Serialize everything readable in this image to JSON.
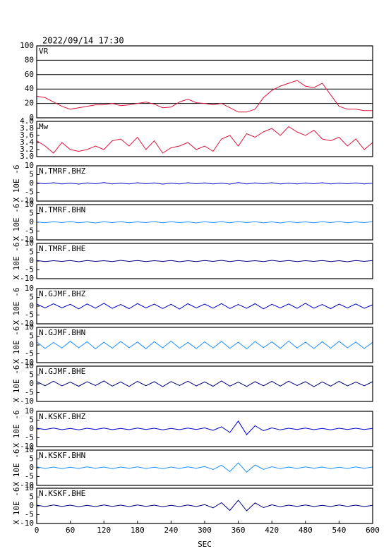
{
  "chart_data": [
    {
      "type": "line",
      "title": "2022/09/14 17:30",
      "label": "VR",
      "color": "#dc143c",
      "grid": true,
      "xlim": [
        0,
        600
      ],
      "ylim": [
        0,
        100
      ],
      "yticks": [
        0,
        20,
        40,
        60,
        80,
        100
      ],
      "x": [
        0,
        15,
        30,
        45,
        60,
        75,
        90,
        105,
        120,
        135,
        150,
        165,
        180,
        195,
        210,
        225,
        240,
        255,
        270,
        285,
        300,
        315,
        330,
        345,
        360,
        375,
        390,
        405,
        420,
        435,
        450,
        465,
        480,
        495,
        510,
        525,
        540,
        555,
        570,
        585,
        600
      ],
      "values": [
        30,
        28,
        22,
        16,
        12,
        14,
        16,
        18,
        18,
        20,
        17,
        18,
        20,
        22,
        19,
        14,
        15,
        22,
        26,
        21,
        20,
        18,
        20,
        14,
        8,
        8,
        12,
        28,
        38,
        44,
        48,
        52,
        44,
        42,
        48,
        32,
        16,
        12,
        12,
        10,
        10
      ]
    },
    {
      "type": "line",
      "label": "Mw",
      "color": "#dc143c",
      "grid": false,
      "xlim": [
        0,
        600
      ],
      "ylim": [
        3,
        4
      ],
      "yticks": [
        {
          "value": 3,
          "label": "3.0"
        },
        3.2,
        3.4,
        3.6,
        3.8,
        {
          "value": 4,
          "label": "4.0"
        }
      ],
      "x": [
        0,
        15,
        30,
        45,
        60,
        75,
        90,
        105,
        120,
        135,
        150,
        165,
        180,
        195,
        210,
        225,
        240,
        255,
        270,
        285,
        300,
        315,
        330,
        345,
        360,
        375,
        390,
        405,
        420,
        435,
        450,
        465,
        480,
        495,
        510,
        525,
        540,
        555,
        570,
        585,
        600
      ],
      "values": [
        3.45,
        3.3,
        3.1,
        3.4,
        3.2,
        3.15,
        3.2,
        3.3,
        3.2,
        3.45,
        3.5,
        3.3,
        3.55,
        3.2,
        3.45,
        3.1,
        3.25,
        3.3,
        3.4,
        3.2,
        3.3,
        3.15,
        3.5,
        3.6,
        3.3,
        3.65,
        3.55,
        3.7,
        3.8,
        3.6,
        3.85,
        3.7,
        3.6,
        3.75,
        3.5,
        3.45,
        3.55,
        3.3,
        3.5,
        3.2,
        3.4
      ]
    },
    {
      "type": "line",
      "label": "N.TMRF.BHZ",
      "ylabel": "X 10E -6",
      "color": "#0000cd",
      "xlim": [
        0,
        600
      ],
      "ylim": [
        -10,
        10
      ],
      "yticks": [
        -10,
        -5,
        0,
        5,
        10
      ],
      "x": [
        0,
        15,
        30,
        45,
        60,
        75,
        90,
        105,
        120,
        135,
        150,
        165,
        180,
        195,
        210,
        225,
        240,
        255,
        270,
        285,
        300,
        315,
        330,
        345,
        360,
        375,
        390,
        405,
        420,
        435,
        450,
        465,
        480,
        495,
        510,
        525,
        540,
        555,
        570,
        585,
        600
      ],
      "values": [
        0.3,
        -0.2,
        0.4,
        -0.3,
        0.2,
        -0.4,
        0.3,
        -0.2,
        0.5,
        -0.3,
        0.2,
        -0.3,
        0.4,
        -0.2,
        0.3,
        -0.4,
        0.2,
        -0.3,
        0.4,
        -0.2,
        0.3,
        -0.3,
        0.2,
        -0.4,
        0.5,
        -0.3,
        0.3,
        -0.2,
        0.4,
        -0.3,
        0.2,
        -0.3,
        0.3,
        -0.2,
        0.4,
        -0.3,
        0.2,
        -0.2,
        0.3,
        -0.3,
        0.2
      ]
    },
    {
      "type": "line",
      "label": "N.TMRF.BHN",
      "ylabel": "X 10E -6",
      "color": "#1e90ff",
      "xlim": [
        0,
        600
      ],
      "ylim": [
        -10,
        10
      ],
      "yticks": [
        -10,
        -5,
        0,
        5,
        10
      ],
      "x": [
        0,
        15,
        30,
        45,
        60,
        75,
        90,
        105,
        120,
        135,
        150,
        165,
        180,
        195,
        210,
        225,
        240,
        255,
        270,
        285,
        300,
        315,
        330,
        345,
        360,
        375,
        390,
        405,
        420,
        435,
        450,
        465,
        480,
        495,
        510,
        525,
        540,
        555,
        570,
        585,
        600
      ],
      "values": [
        0.2,
        -0.3,
        0.3,
        -0.2,
        0.4,
        -0.3,
        0.2,
        -0.4,
        0.3,
        -0.2,
        0.3,
        -0.3,
        0.2,
        -0.2,
        0.4,
        -0.3,
        0.3,
        -0.2,
        0.2,
        -0.4,
        0.3,
        -0.2,
        0.3,
        -0.3,
        0.4,
        -0.2,
        0.3,
        -0.3,
        0.2,
        -0.4,
        0.3,
        -0.2,
        0.2,
        -0.3,
        0.3,
        -0.2,
        0.4,
        -0.3,
        0.2,
        -0.2,
        0.3
      ]
    },
    {
      "type": "line",
      "label": "N.TMRF.BHE",
      "ylabel": "X 10E -6",
      "color": "#000080",
      "xlim": [
        0,
        600
      ],
      "ylim": [
        -10,
        10
      ],
      "yticks": [
        -10,
        -5,
        0,
        5,
        10
      ],
      "x": [
        0,
        15,
        30,
        45,
        60,
        75,
        90,
        105,
        120,
        135,
        150,
        165,
        180,
        195,
        210,
        225,
        240,
        255,
        270,
        285,
        300,
        315,
        330,
        345,
        360,
        375,
        390,
        405,
        420,
        435,
        450,
        465,
        480,
        495,
        510,
        525,
        540,
        555,
        570,
        585,
        600
      ],
      "values": [
        0.3,
        -0.3,
        0.2,
        -0.2,
        0.3,
        -0.4,
        0.3,
        -0.2,
        0.2,
        -0.3,
        0.4,
        -0.2,
        0.3,
        -0.3,
        0.2,
        -0.2,
        0.3,
        -0.4,
        0.2,
        -0.3,
        0.3,
        -0.2,
        0.4,
        -0.3,
        0.3,
        -0.2,
        0.2,
        -0.3,
        0.4,
        -0.2,
        0.3,
        -0.3,
        0.2,
        -0.2,
        0.3,
        -0.3,
        0.2,
        -0.4,
        0.3,
        -0.2,
        0.3
      ]
    },
    {
      "type": "line",
      "label": "N.GJMF.BHZ",
      "ylabel": "X 10E -6",
      "color": "#0000cd",
      "xlim": [
        0,
        600
      ],
      "ylim": [
        -10,
        10
      ],
      "yticks": [
        -10,
        -5,
        0,
        5,
        10
      ],
      "x": [
        0,
        15,
        30,
        45,
        60,
        75,
        90,
        105,
        120,
        135,
        150,
        165,
        180,
        195,
        210,
        225,
        240,
        255,
        270,
        285,
        300,
        315,
        330,
        345,
        360,
        375,
        390,
        405,
        420,
        435,
        450,
        465,
        480,
        495,
        510,
        525,
        540,
        555,
        570,
        585,
        600
      ],
      "values": [
        1.2,
        -1.0,
        1.4,
        -0.9,
        1.1,
        -1.5,
        1.3,
        -1.1,
        1.6,
        -1.2,
        1.0,
        -1.4,
        1.5,
        -1.0,
        1.2,
        -1.3,
        1.1,
        -1.6,
        1.4,
        -1.0,
        1.2,
        -1.1,
        1.5,
        -1.3,
        1.0,
        -1.2,
        1.4,
        -1.5,
        1.1,
        -1.0,
        1.3,
        -1.2,
        1.6,
        -1.1,
        1.0,
        -1.4,
        1.2,
        -1.0,
        1.3,
        -1.2,
        0.8
      ]
    },
    {
      "type": "line",
      "label": "N.GJMF.BHN",
      "ylabel": "X 10E -6",
      "color": "#1e90ff",
      "xlim": [
        0,
        600
      ],
      "ylim": [
        -10,
        10
      ],
      "yticks": [
        -10,
        -5,
        0,
        5,
        10
      ],
      "x": [
        0,
        15,
        30,
        45,
        60,
        75,
        90,
        105,
        120,
        135,
        150,
        165,
        180,
        195,
        210,
        225,
        240,
        255,
        270,
        285,
        300,
        315,
        330,
        345,
        360,
        375,
        390,
        405,
        420,
        435,
        450,
        465,
        480,
        495,
        510,
        525,
        540,
        555,
        570,
        585,
        600
      ],
      "values": [
        1.8,
        -2.0,
        1.5,
        -1.7,
        2.1,
        -1.6,
        1.9,
        -2.2,
        1.6,
        -1.8,
        2.0,
        -1.5,
        1.7,
        -2.1,
        1.9,
        -1.6,
        2.2,
        -1.8,
        1.5,
        -2.0,
        1.8,
        -1.7,
        2.1,
        -1.9,
        1.6,
        -2.2,
        2.0,
        -1.5,
        1.8,
        -1.9,
        2.2,
        -1.7,
        1.6,
        -2.0,
        1.9,
        -1.8,
        2.1,
        -1.6,
        1.7,
        -2.0,
        1.5
      ]
    },
    {
      "type": "line",
      "label": "N.GJMF.BHE",
      "ylabel": "X 10E -6",
      "color": "#000080",
      "xlim": [
        0,
        600
      ],
      "ylim": [
        -10,
        10
      ],
      "yticks": [
        -10,
        -5,
        0,
        5,
        10
      ],
      "x": [
        0,
        15,
        30,
        45,
        60,
        75,
        90,
        105,
        120,
        135,
        150,
        165,
        180,
        195,
        210,
        225,
        240,
        255,
        270,
        285,
        300,
        315,
        330,
        345,
        360,
        375,
        390,
        405,
        420,
        435,
        450,
        465,
        480,
        495,
        510,
        525,
        540,
        555,
        570,
        585,
        600
      ],
      "values": [
        1.3,
        -1.1,
        1.5,
        -1.2,
        1.0,
        -1.4,
        1.2,
        -1.0,
        1.6,
        -1.3,
        1.1,
        -1.5,
        1.4,
        -1.1,
        1.2,
        -1.6,
        1.3,
        -1.0,
        1.5,
        -1.2,
        1.1,
        -1.4,
        1.6,
        -1.3,
        1.0,
        -1.5,
        1.2,
        -1.1,
        1.4,
        -1.3,
        1.5,
        -1.0,
        1.2,
        -1.6,
        1.1,
        -1.3,
        1.4,
        -1.2,
        1.0,
        -1.1,
        1.2
      ]
    },
    {
      "type": "line",
      "label": "N.KSKF.BHZ",
      "ylabel": "X 10E -6",
      "color": "#0000cd",
      "xlim": [
        0,
        600
      ],
      "ylim": [
        -10,
        10
      ],
      "yticks": [
        -10,
        -5,
        0,
        5,
        10
      ],
      "x": [
        0,
        15,
        30,
        45,
        60,
        75,
        90,
        105,
        120,
        135,
        150,
        165,
        180,
        195,
        210,
        225,
        240,
        255,
        270,
        285,
        300,
        315,
        330,
        345,
        360,
        375,
        390,
        405,
        420,
        435,
        450,
        465,
        480,
        495,
        510,
        525,
        540,
        555,
        570,
        585,
        600
      ],
      "values": [
        0.4,
        -0.3,
        0.5,
        -0.4,
        0.3,
        -0.5,
        0.4,
        -0.3,
        0.5,
        -0.4,
        0.3,
        -0.4,
        0.5,
        -0.3,
        0.4,
        -0.5,
        0.3,
        -0.4,
        0.5,
        -0.3,
        0.6,
        -0.8,
        1.2,
        -2.0,
        4.5,
        -3.2,
        1.8,
        -1.0,
        0.6,
        -0.5,
        0.4,
        -0.3,
        0.5,
        -0.4,
        0.3,
        -0.5,
        0.4,
        -0.3,
        0.4,
        -0.3,
        0.3
      ]
    },
    {
      "type": "line",
      "label": "N.KSKF.BHN",
      "ylabel": "X 10E -6",
      "color": "#1e90ff",
      "xlim": [
        0,
        600
      ],
      "ylim": [
        -10,
        10
      ],
      "yticks": [
        -10,
        -5,
        0,
        5,
        10
      ],
      "x": [
        0,
        15,
        30,
        45,
        60,
        75,
        90,
        105,
        120,
        135,
        150,
        165,
        180,
        195,
        210,
        225,
        240,
        255,
        270,
        285,
        300,
        315,
        330,
        345,
        360,
        375,
        390,
        405,
        420,
        435,
        450,
        465,
        480,
        495,
        510,
        525,
        540,
        555,
        570,
        585,
        600
      ],
      "values": [
        0.5,
        -0.4,
        0.4,
        -0.5,
        0.3,
        -0.4,
        0.5,
        -0.3,
        0.4,
        -0.5,
        0.4,
        -0.3,
        0.5,
        -0.4,
        0.3,
        -0.5,
        0.4,
        -0.4,
        0.5,
        -0.3,
        0.7,
        -1.0,
        1.5,
        -2.2,
        2.8,
        -2.5,
        1.6,
        -0.9,
        0.6,
        -0.5,
        0.4,
        -0.4,
        0.5,
        -0.3,
        0.4,
        -0.5,
        0.3,
        -0.4,
        0.5,
        -0.3,
        0.4
      ]
    },
    {
      "type": "line",
      "label": "N.KSKF.BHE",
      "ylabel": "X 10E -6",
      "color": "#000080",
      "xlim": [
        0,
        600
      ],
      "ylim": [
        -10,
        10
      ],
      "yticks": [
        -10,
        -5,
        0,
        5,
        10
      ],
      "xlabel": "SEC",
      "xticks": [
        0,
        60,
        120,
        180,
        240,
        300,
        360,
        420,
        480,
        540,
        600
      ],
      "x": [
        0,
        15,
        30,
        45,
        60,
        75,
        90,
        105,
        120,
        135,
        150,
        165,
        180,
        195,
        210,
        225,
        240,
        255,
        270,
        285,
        300,
        315,
        330,
        345,
        360,
        375,
        390,
        405,
        420,
        435,
        450,
        465,
        480,
        495,
        510,
        525,
        540,
        555,
        570,
        585,
        600
      ],
      "values": [
        0.4,
        -0.4,
        0.5,
        -0.3,
        0.4,
        -0.5,
        0.3,
        -0.4,
        0.5,
        -0.3,
        0.4,
        -0.4,
        0.5,
        -0.3,
        0.4,
        -0.5,
        0.3,
        -0.4,
        0.5,
        -0.4,
        0.7,
        -1.1,
        1.8,
        -2.6,
        3.2,
        -2.8,
        1.7,
        -1.0,
        0.6,
        -0.5,
        0.4,
        -0.3,
        0.5,
        -0.4,
        0.3,
        -0.4,
        0.5,
        -0.3,
        0.4,
        -0.4,
        0.3
      ]
    }
  ]
}
